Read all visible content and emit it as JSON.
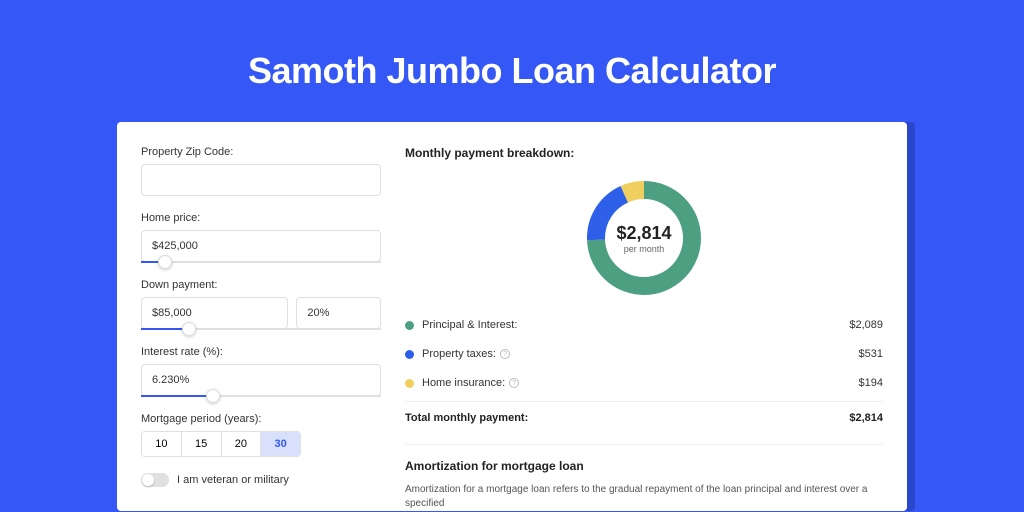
{
  "page": {
    "title": "Samoth Jumbo Loan Calculator",
    "background_color": "#3457f5",
    "shadow_color": "#2a46c9"
  },
  "form": {
    "zip": {
      "label": "Property Zip Code:",
      "value": ""
    },
    "home_price": {
      "label": "Home price:",
      "value": "$425,000",
      "slider_pct": 10
    },
    "down_payment": {
      "label": "Down payment:",
      "amount": "$85,000",
      "pct": "20%",
      "slider_pct": 20
    },
    "interest_rate": {
      "label": "Interest rate (%):",
      "value": "6.230%",
      "slider_pct": 30
    },
    "mortgage_period": {
      "label": "Mortgage period (years):",
      "options": [
        "10",
        "15",
        "20",
        "30"
      ],
      "selected": "30"
    },
    "veteran": {
      "label": "I am veteran or military",
      "checked": false
    }
  },
  "breakdown": {
    "title": "Monthly payment breakdown:",
    "center_amount": "$2,814",
    "center_sub": "per month",
    "donut": {
      "radius": 48,
      "stroke_width": 18,
      "slices": [
        {
          "key": "principal_interest",
          "value": 2089,
          "color": "#4ca081"
        },
        {
          "key": "property_taxes",
          "value": 531,
          "color": "#2e5fe8"
        },
        {
          "key": "home_insurance",
          "value": 194,
          "color": "#f0cf5e"
        }
      ]
    },
    "legend": [
      {
        "label": "Principal & Interest:",
        "value": "$2,089",
        "color": "#4ca081",
        "info": false
      },
      {
        "label": "Property taxes:",
        "value": "$531",
        "color": "#2e5fe8",
        "info": true
      },
      {
        "label": "Home insurance:",
        "value": "$194",
        "color": "#f0cf5e",
        "info": true
      }
    ],
    "total": {
      "label": "Total monthly payment:",
      "value": "$2,814"
    }
  },
  "amortization": {
    "title": "Amortization for mortgage loan",
    "text": "Amortization for a mortgage loan refers to the gradual repayment of the loan principal and interest over a specified"
  }
}
